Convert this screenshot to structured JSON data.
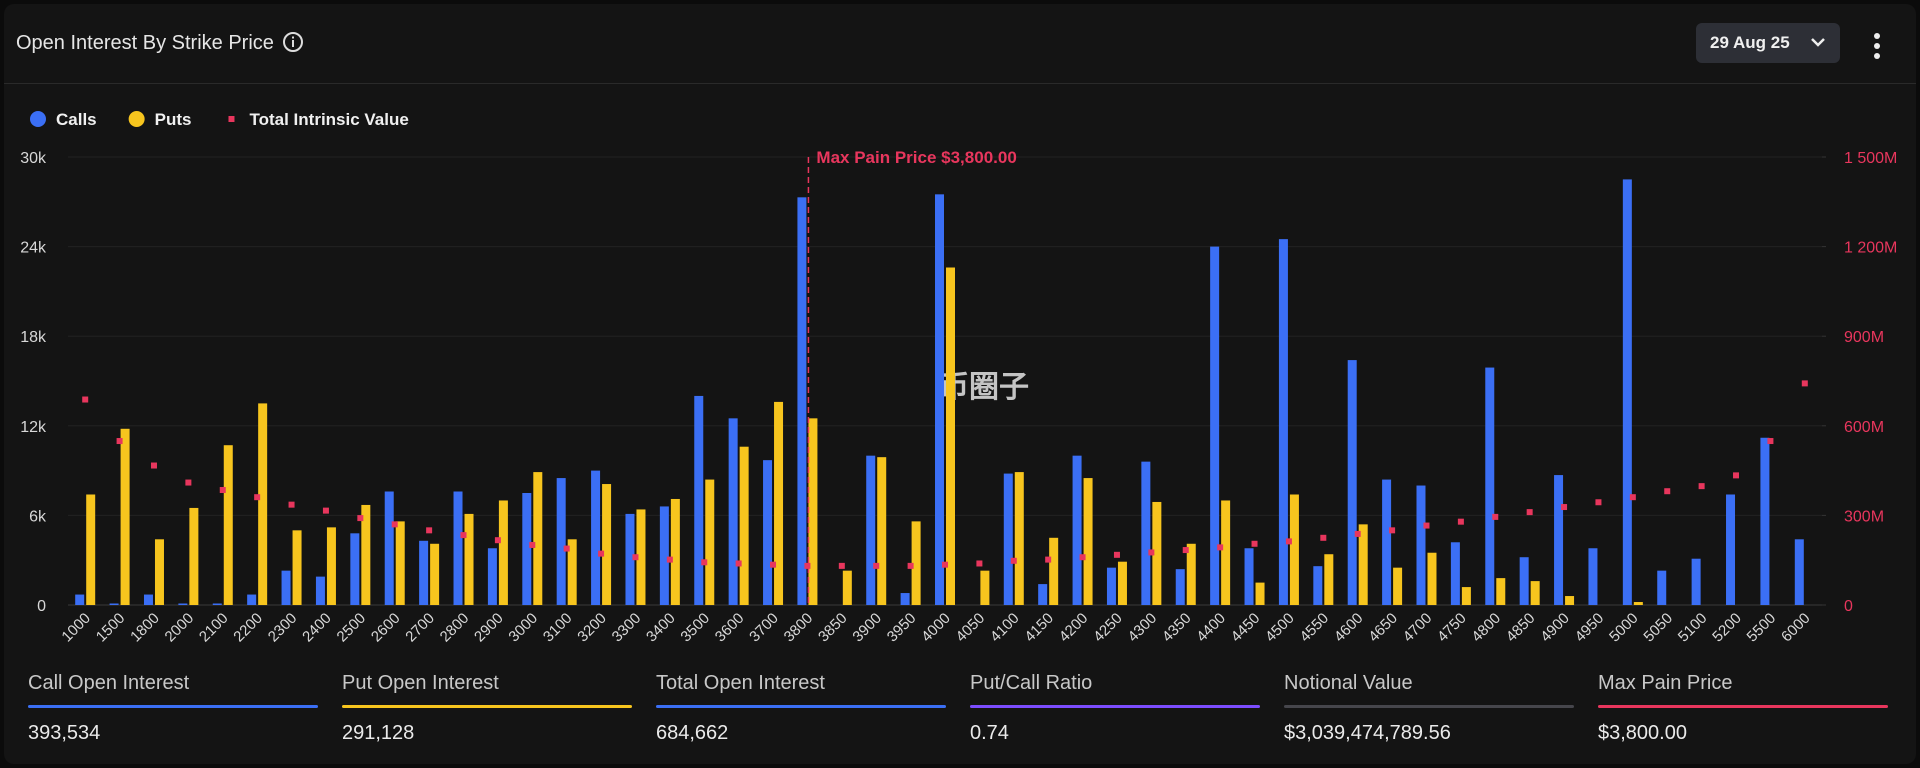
{
  "header": {
    "title": "Open Interest By Strike Price",
    "date": "29 Aug 25"
  },
  "chart_data": {
    "type": "bar",
    "categories": [
      1000,
      1500,
      1800,
      2000,
      2100,
      2200,
      2300,
      2400,
      2500,
      2600,
      2700,
      2800,
      2900,
      3000,
      3100,
      3200,
      3300,
      3400,
      3500,
      3600,
      3700,
      3800,
      3850,
      3900,
      3950,
      4000,
      4050,
      4100,
      4150,
      4200,
      4250,
      4300,
      4350,
      4400,
      4450,
      4500,
      4550,
      4600,
      4650,
      4700,
      4750,
      4800,
      4850,
      4900,
      4950,
      5000,
      5050,
      5100,
      5200,
      5500,
      6000
    ],
    "series": [
      {
        "name": "Calls",
        "color": "#3b6ff5",
        "values": [
          700,
          100,
          700,
          100,
          100,
          700,
          2300,
          1900,
          4800,
          7600,
          4300,
          7600,
          3800,
          7500,
          8500,
          9000,
          6100,
          6600,
          14000,
          12500,
          9700,
          27300,
          0,
          10000,
          800,
          27500,
          0,
          8800,
          1400,
          10000,
          2500,
          9600,
          2400,
          24000,
          3800,
          24500,
          2600,
          16400,
          8400,
          8000,
          4200,
          15900,
          3200,
          8700,
          3800,
          28500,
          2300,
          3100,
          7400,
          11200,
          4400
        ]
      },
      {
        "name": "Puts",
        "color": "#f7c51e",
        "values": [
          7400,
          11800,
          4400,
          6500,
          10700,
          13500,
          5000,
          5200,
          6700,
          5600,
          4100,
          6100,
          7000,
          8900,
          4400,
          8100,
          6400,
          7100,
          8400,
          10600,
          13600,
          12500,
          2300,
          9900,
          5600,
          22600,
          2300,
          8900,
          4500,
          8500,
          2900,
          6900,
          4100,
          7000,
          1500,
          7400,
          3400,
          5400,
          2500,
          3500,
          1200,
          1800,
          1600,
          600,
          0,
          200,
          0,
          0,
          0,
          0,
          0
        ]
      },
      {
        "name": "Total Intrinsic Value",
        "color": "#e8365d",
        "axis": "y2",
        "values": [
          688000000,
          549000000,
          467000000,
          410000000,
          385000000,
          361000000,
          336000000,
          316000000,
          291000000,
          270000000,
          250000000,
          234000000,
          217000000,
          201000000,
          189000000,
          172000000,
          160000000,
          152000000,
          143000000,
          139000000,
          135000000,
          131000000,
          131000000,
          131000000,
          131000000,
          135000000,
          139000000,
          148000000,
          152000000,
          160000000,
          168000000,
          176000000,
          184000000,
          193000000,
          205000000,
          213000000,
          225000000,
          238000000,
          250000000,
          266000000,
          279000000,
          295000000,
          311000000,
          328000000,
          344000000,
          361000000,
          381000000,
          398000000,
          434000000,
          549000000,
          742000000
        ]
      }
    ],
    "ylim": [
      0,
      30000
    ],
    "yticks": [
      0,
      {
        "value": 6000,
        "label": "6k"
      },
      {
        "value": 12000,
        "label": "12k"
      },
      {
        "value": 18000,
        "label": "18k"
      },
      {
        "value": 24000,
        "label": "24k"
      },
      {
        "value": 30000,
        "label": "30k"
      }
    ],
    "y2lim": [
      0,
      1500000000
    ],
    "y2ticks": [
      0,
      {
        "value": 300000000,
        "label": "300M"
      },
      {
        "value": 600000000,
        "label": "600M"
      },
      {
        "value": 900000000,
        "label": "900M"
      },
      {
        "value": 1200000000,
        "label": "1 200M"
      },
      {
        "value": 1500000000,
        "label": "1 500M"
      }
    ],
    "grid": true,
    "annotation": {
      "text": "Max Pain Price $3,800.00",
      "x": 3800
    },
    "watermark": "币圈子"
  },
  "stats": [
    {
      "label": "Call Open Interest",
      "value": "393,534",
      "color": "#3b6ff5"
    },
    {
      "label": "Put Open Interest",
      "value": "291,128",
      "color": "#f7c51e"
    },
    {
      "label": "Total Open Interest",
      "value": "684,662",
      "color": "#3b6ff5"
    },
    {
      "label": "Put/Call Ratio",
      "value": "0.74",
      "color": "#7c4dff"
    },
    {
      "label": "Notional Value",
      "value": "$3,039,474,789.56",
      "color": "#46464c"
    },
    {
      "label": "Max Pain Price",
      "value": "$3,800.00",
      "color": "#e8365d"
    }
  ]
}
